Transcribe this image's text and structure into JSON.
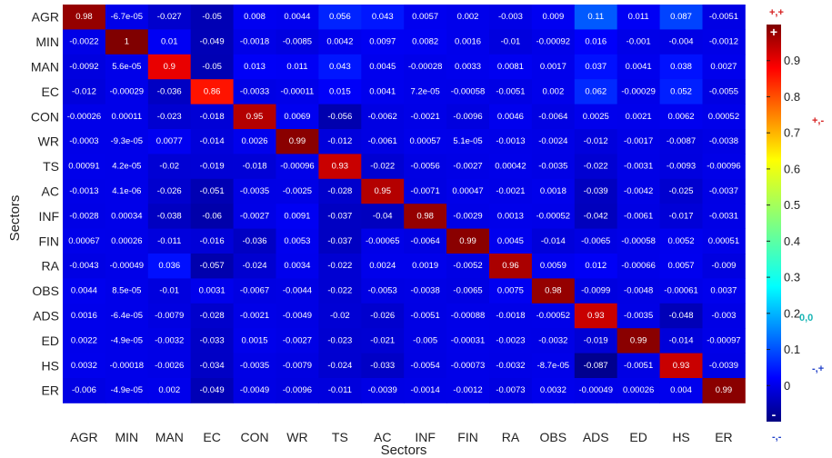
{
  "chart_data": {
    "type": "heatmap",
    "title": "",
    "xlabel": "Sectors",
    "ylabel": "Sectors",
    "rows": [
      "AGR",
      "MIN",
      "MAN",
      "EC",
      "CON",
      "WR",
      "TS",
      "AC",
      "INF",
      "FIN",
      "RA",
      "OBS",
      "ADS",
      "ED",
      "HS",
      "ER"
    ],
    "cols": [
      "AGR",
      "MIN",
      "MAN",
      "EC",
      "CON",
      "WR",
      "TS",
      "AC",
      "INF",
      "FIN",
      "RA",
      "OBS",
      "ADS",
      "ED",
      "HS",
      "ER"
    ],
    "values": [
      [
        "0.98",
        "-6.7e-05",
        "-0.027",
        "-0.05",
        "0.008",
        "0.0044",
        "0.056",
        "0.043",
        "0.0057",
        "0.002",
        "-0.003",
        "0.009",
        "0.11",
        "0.011",
        "0.087",
        "-0.0051"
      ],
      [
        "-0.0022",
        "1",
        "0.01",
        "-0.049",
        "-0.0018",
        "-0.0085",
        "0.0042",
        "0.0097",
        "0.0082",
        "0.0016",
        "-0.01",
        "-0.00092",
        "0.016",
        "-0.001",
        "-0.004",
        "-0.0012"
      ],
      [
        "-0.0092",
        "5.6e-05",
        "0.9",
        "-0.05",
        "0.013",
        "0.011",
        "0.043",
        "0.0045",
        "-0.00028",
        "0.0033",
        "0.0081",
        "0.0017",
        "0.037",
        "0.0041",
        "0.038",
        "0.0027"
      ],
      [
        "-0.012",
        "-0.00029",
        "-0.036",
        "0.86",
        "-0.0033",
        "-0.00011",
        "0.015",
        "0.0041",
        "7.2e-05",
        "-0.00058",
        "-0.0051",
        "0.002",
        "0.062",
        "-0.00029",
        "0.052",
        "-0.0055"
      ],
      [
        "-0.00026",
        "0.00011",
        "-0.023",
        "-0.018",
        "0.95",
        "0.0069",
        "-0.056",
        "-0.0062",
        "-0.0021",
        "-0.0096",
        "0.0046",
        "-0.0064",
        "0.0025",
        "0.0021",
        "0.0062",
        "0.00052"
      ],
      [
        "-0.0003",
        "-9.3e-05",
        "0.0077",
        "-0.014",
        "0.0026",
        "0.99",
        "-0.012",
        "-0.0061",
        "0.00057",
        "5.1e-05",
        "-0.0013",
        "-0.0024",
        "-0.012",
        "-0.0017",
        "-0.0087",
        "-0.0038"
      ],
      [
        "0.00091",
        "4.2e-05",
        "-0.02",
        "-0.019",
        "-0.018",
        "-0.00096",
        "0.93",
        "-0.022",
        "-0.0056",
        "-0.0027",
        "0.00042",
        "-0.0035",
        "-0.022",
        "-0.0031",
        "-0.0093",
        "-0.00096"
      ],
      [
        "-0.0013",
        "4.1e-06",
        "-0.026",
        "-0.051",
        "-0.0035",
        "-0.0025",
        "-0.028",
        "0.95",
        "-0.0071",
        "0.00047",
        "-0.0021",
        "0.0018",
        "-0.039",
        "-0.0042",
        "-0.025",
        "-0.0037"
      ],
      [
        "-0.0028",
        "0.00034",
        "-0.038",
        "-0.06",
        "-0.0027",
        "0.0091",
        "-0.037",
        "-0.04",
        "0.98",
        "-0.0029",
        "0.0013",
        "-0.00052",
        "-0.042",
        "-0.0061",
        "-0.017",
        "-0.0031"
      ],
      [
        "0.00067",
        "0.00026",
        "-0.011",
        "-0.016",
        "-0.036",
        "0.0053",
        "-0.037",
        "-0.00065",
        "-0.0064",
        "0.99",
        "0.0045",
        "-0.014",
        "-0.0065",
        "-0.00058",
        "0.0052",
        "0.00051"
      ],
      [
        "-0.0043",
        "-0.00049",
        "0.036",
        "-0.057",
        "-0.024",
        "0.0034",
        "-0.022",
        "0.0024",
        "0.0019",
        "-0.0052",
        "0.96",
        "0.0059",
        "0.012",
        "-0.00066",
        "0.0057",
        "-0.009"
      ],
      [
        "0.0044",
        "8.5e-05",
        "-0.01",
        "0.0031",
        "-0.0067",
        "-0.0044",
        "-0.022",
        "-0.0053",
        "-0.0038",
        "-0.0065",
        "0.0075",
        "0.98",
        "-0.0099",
        "-0.0048",
        "-0.00061",
        "0.0037"
      ],
      [
        "0.0016",
        "-6.4e-05",
        "-0.0079",
        "-0.028",
        "-0.0021",
        "-0.0049",
        "-0.02",
        "-0.026",
        "-0.0051",
        "-0.00088",
        "-0.0018",
        "-0.00052",
        "0.93",
        "-0.0035",
        "-0.048",
        "-0.003"
      ],
      [
        "0.0022",
        "-4.9e-05",
        "-0.0032",
        "-0.033",
        "0.0015",
        "-0.0027",
        "-0.023",
        "-0.021",
        "-0.005",
        "-0.00031",
        "-0.0023",
        "-0.0032",
        "-0.019",
        "0.99",
        "-0.014",
        "-0.00097"
      ],
      [
        "0.0032",
        "-0.00018",
        "-0.0026",
        "-0.034",
        "-0.0035",
        "-0.0079",
        "-0.024",
        "-0.033",
        "-0.0054",
        "-0.00073",
        "-0.0032",
        "-8.7e-05",
        "-0.087",
        "-0.0051",
        "0.93",
        "-0.0039"
      ],
      [
        "-0.006",
        "-4.9e-05",
        "0.002",
        "-0.049",
        "-0.0049",
        "-0.0096",
        "-0.011",
        "-0.0039",
        "-0.0014",
        "-0.0012",
        "-0.0073",
        "0.0032",
        "-0.00049",
        "0.00026",
        "0.004",
        "0.99"
      ]
    ],
    "colorbar": {
      "range": [
        -0.1,
        1.0
      ],
      "ticks": [
        "0",
        "0.1",
        "0.2",
        "0.3",
        "0.4",
        "0.5",
        "0.6",
        "0.7",
        "0.8",
        "0.9"
      ],
      "top_marker": "+",
      "bottom_marker": "-"
    },
    "annotations": [
      {
        "text": "+,+",
        "color": "#d62020"
      },
      {
        "text": "+,-",
        "color": "#d62020"
      },
      {
        "text": "0,0",
        "color": "#19b5b5"
      },
      {
        "text": "-,+",
        "color": "#2040c8"
      },
      {
        "text": "-,-",
        "color": "#2040c8"
      }
    ],
    "grid": false
  }
}
